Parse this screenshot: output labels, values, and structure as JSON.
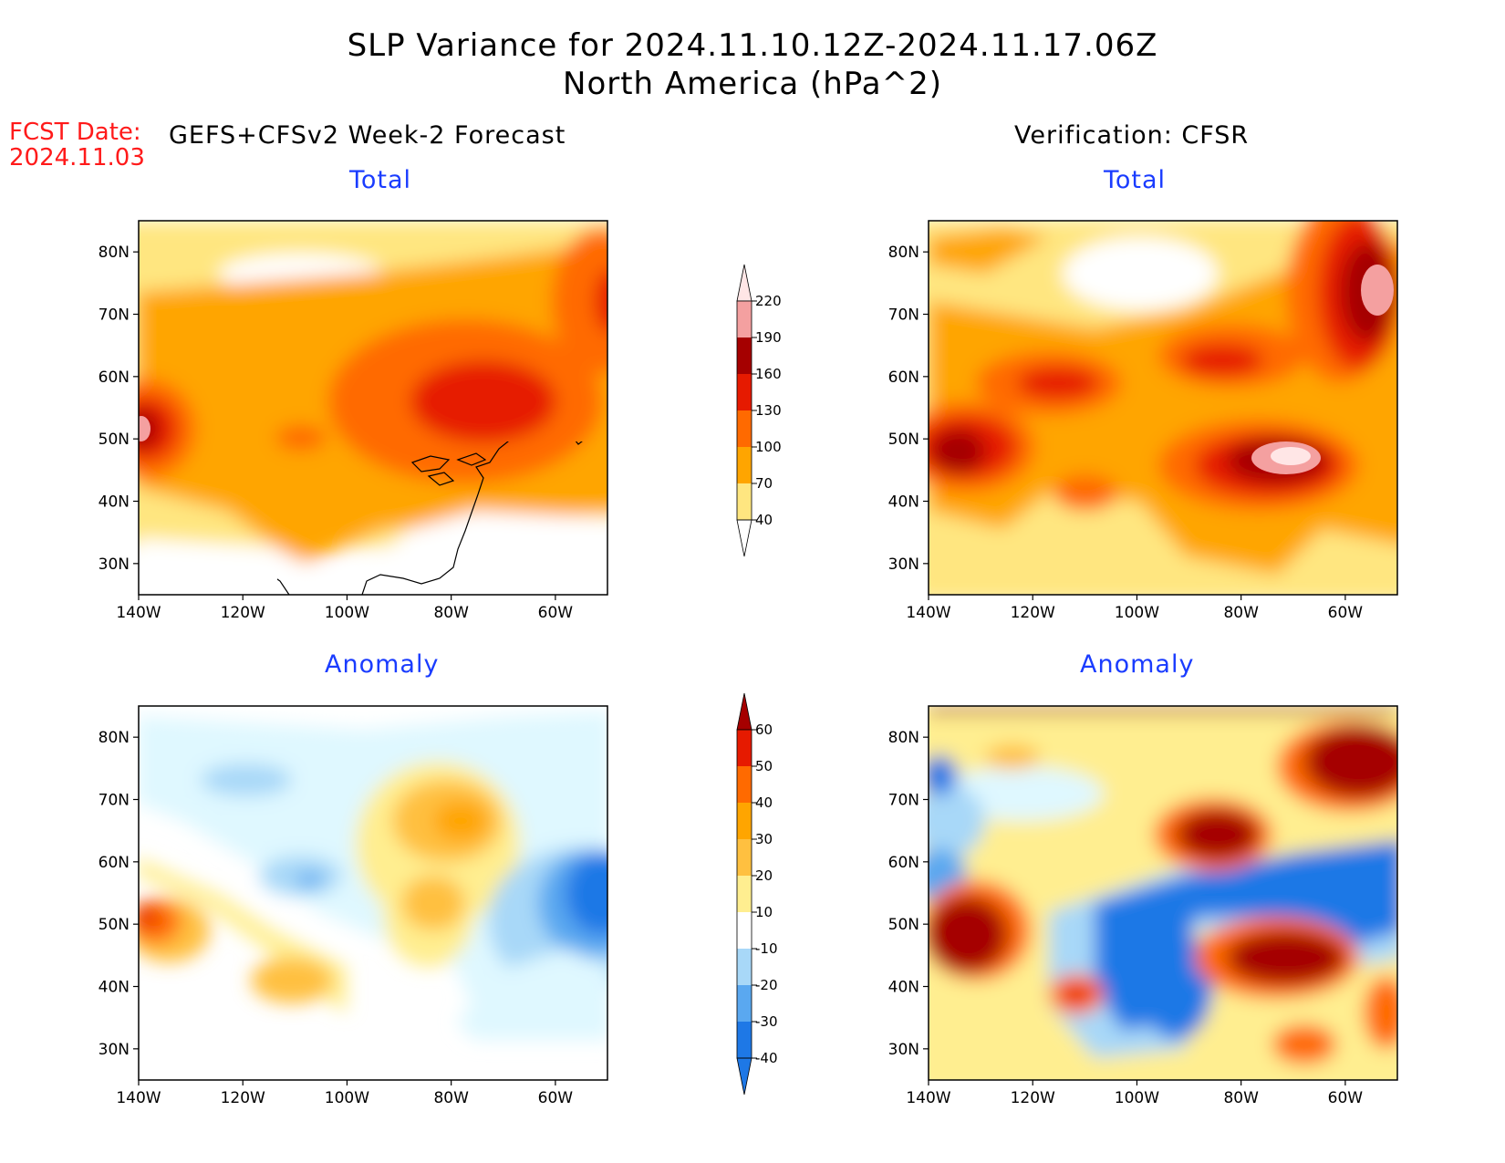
{
  "header": {
    "title_line1": "SLP Variance for 2024.11.10.12Z-2024.11.17.06Z",
    "title_line2": "North America (hPa^2)",
    "fcst_label": "FCST Date:",
    "fcst_date": "2024.11.03",
    "left_column": "GEFS+CFSv2 Week-2 Forecast",
    "right_column": "Verification: CFSR"
  },
  "panels": {
    "top_left": "Total",
    "top_right": "Total",
    "bottom_left": "Anomaly",
    "bottom_right": "Anomaly"
  },
  "axes": {
    "lat_ticks": [
      "80N",
      "70N",
      "60N",
      "50N",
      "40N",
      "30N"
    ],
    "lon_ticks": [
      "140W",
      "120W",
      "100W",
      "80W",
      "60W"
    ]
  },
  "colorbars": {
    "total": {
      "levels": [
        "40",
        "70",
        "100",
        "130",
        "160",
        "190",
        "220"
      ],
      "colors": [
        "#ffe680",
        "#ffa500",
        "#ff6a00",
        "#e61a00",
        "#a50000",
        "#f4a0a0",
        "#ffe6e6"
      ]
    },
    "anomaly": {
      "levels": [
        "60",
        "50",
        "40",
        "30",
        "20",
        "10",
        "-10",
        "-20",
        "-30",
        "-40"
      ],
      "colors": [
        "#a50000",
        "#e61a00",
        "#ff6a00",
        "#ffa500",
        "#ffc040",
        "#ffee90",
        "#ffffff",
        "#dff8ff",
        "#a8d8f8",
        "#5aa8f0",
        "#1e78e6",
        "#0a50c8"
      ]
    }
  },
  "map_extent": {
    "lon": [
      -140,
      -50
    ],
    "lat": [
      25,
      85
    ]
  }
}
